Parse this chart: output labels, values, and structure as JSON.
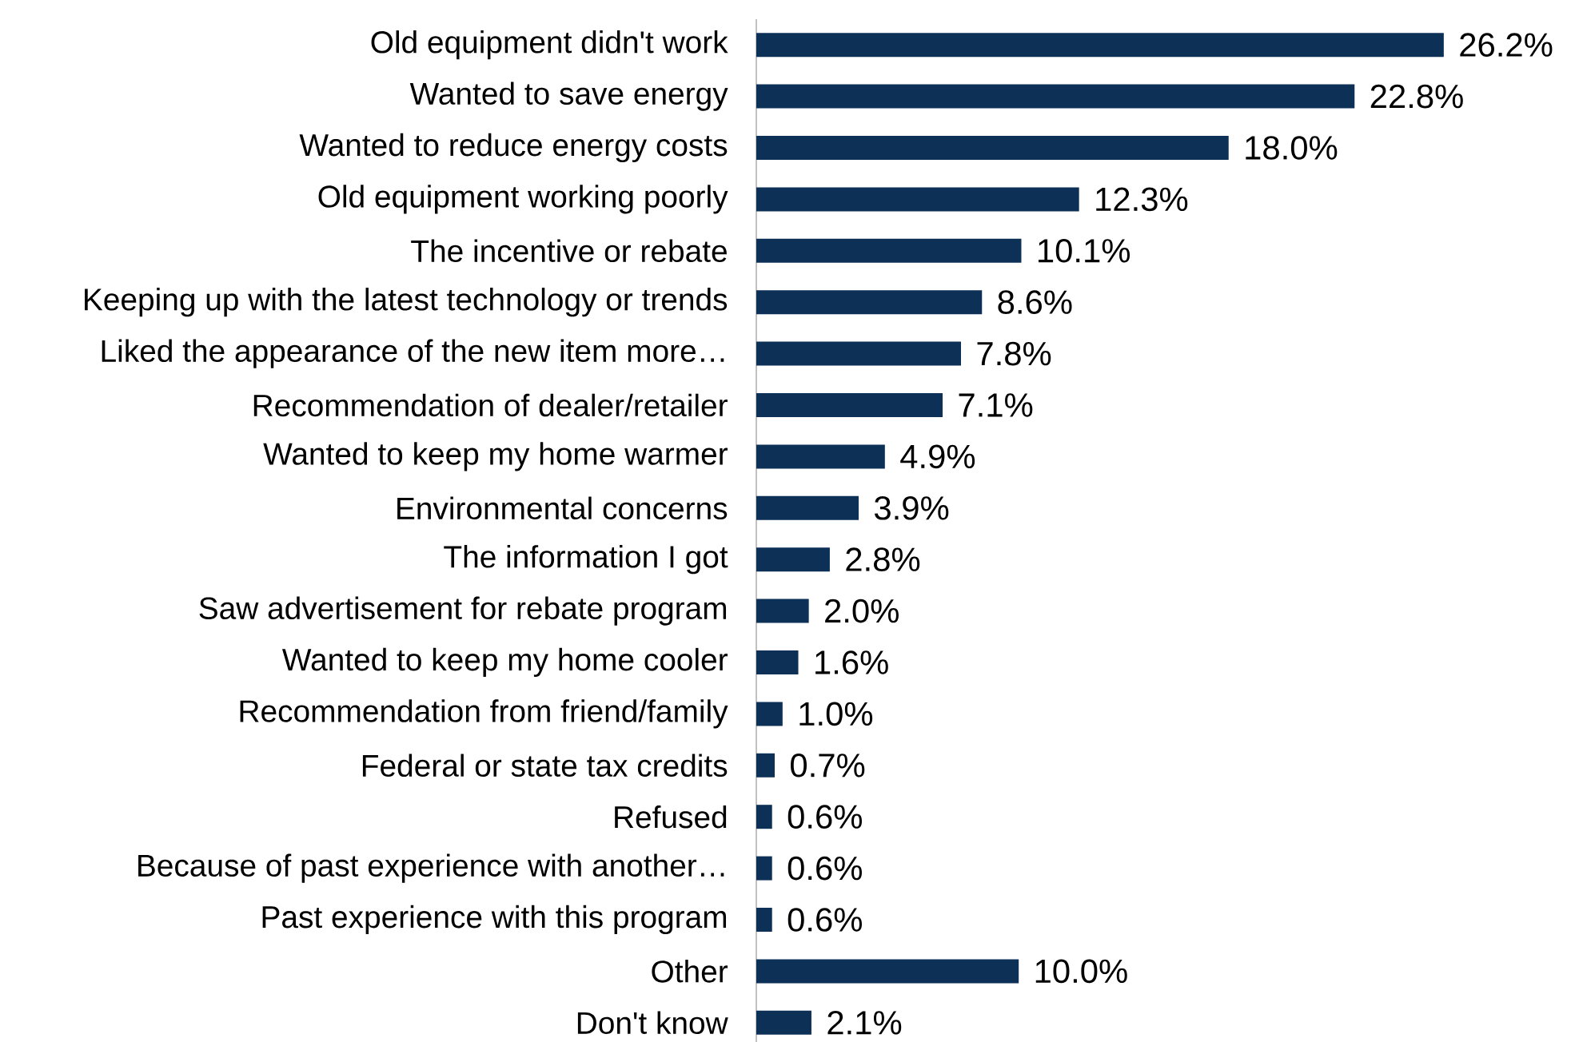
{
  "chart_data": {
    "type": "bar",
    "orientation": "horizontal",
    "categories": [
      "Old equipment didn't work",
      "Wanted to save energy",
      "Wanted to reduce energy costs",
      "Old equipment working poorly",
      "The incentive or rebate",
      "Keeping up with the latest technology or trends",
      "Liked the appearance of the new item more…",
      "Recommendation of dealer/retailer",
      "Wanted to keep my home warmer",
      "Environmental concerns",
      "The information I got",
      "Saw advertisement for rebate program",
      "Wanted to keep my home cooler",
      "Recommendation from friend/family",
      "Federal or state tax credits",
      "Refused",
      "Because of past experience with another…",
      "Past experience with this program",
      "Other",
      "Don't know"
    ],
    "values": [
      26.2,
      22.8,
      18.0,
      12.3,
      10.1,
      8.6,
      7.8,
      7.1,
      4.9,
      3.9,
      2.8,
      2.0,
      1.6,
      1.0,
      0.7,
      0.6,
      0.6,
      0.6,
      10.0,
      2.1
    ],
    "value_labels": [
      "26.2%",
      "22.8%",
      "18.0%",
      "12.3%",
      "10.1%",
      "8.6%",
      "7.8%",
      "7.1%",
      "4.9%",
      "3.9%",
      "2.8%",
      "2.0%",
      "1.6%",
      "1.0%",
      "0.7%",
      "0.6%",
      "0.6%",
      "0.6%",
      "10.0%",
      "2.1%"
    ],
    "color": "#0d3057"
  }
}
